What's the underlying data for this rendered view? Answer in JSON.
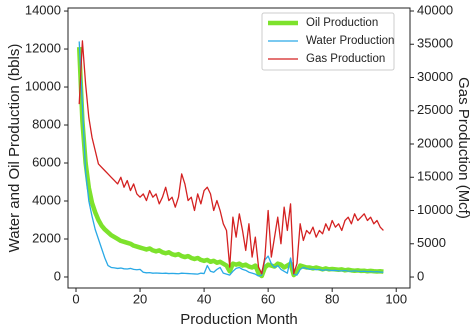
{
  "chart_data": {
    "type": "line",
    "xlabel": "Production Month",
    "ylabel": "Water and Oil Production (bbls)",
    "y2label": "Gas Production (Mcf)",
    "x": [
      1,
      2,
      3,
      4,
      5,
      6,
      7,
      8,
      9,
      10,
      11,
      12,
      13,
      14,
      15,
      16,
      17,
      18,
      19,
      20,
      21,
      22,
      23,
      24,
      25,
      26,
      27,
      28,
      29,
      30,
      31,
      32,
      33,
      34,
      35,
      36,
      37,
      38,
      39,
      40,
      41,
      42,
      43,
      44,
      45,
      46,
      47,
      48,
      49,
      50,
      51,
      52,
      53,
      54,
      55,
      56,
      57,
      58,
      59,
      60,
      61,
      62,
      63,
      64,
      65,
      66,
      67,
      68,
      69,
      70,
      71,
      72,
      73,
      74,
      75,
      76,
      77,
      78,
      79,
      80,
      81,
      82,
      83,
      84,
      85,
      86,
      87,
      88,
      89,
      90,
      91,
      92,
      93,
      94,
      95,
      96
    ],
    "series": [
      {
        "name": "Oil Production",
        "color": "#7de22c",
        "width": 4.5,
        "values": [
          12100,
          8200,
          6000,
          4700,
          3900,
          3400,
          3000,
          2700,
          2500,
          2350,
          2200,
          2100,
          2000,
          1900,
          1850,
          1800,
          1750,
          1650,
          1600,
          1550,
          1500,
          1450,
          1500,
          1400,
          1350,
          1400,
          1300,
          1250,
          1300,
          1200,
          1150,
          1200,
          1100,
          1050,
          1100,
          1000,
          950,
          1000,
          900,
          850,
          900,
          800,
          850,
          750,
          800,
          700,
          600,
          300,
          700,
          650,
          700,
          600,
          650,
          550,
          500,
          600,
          200,
          50,
          500,
          650,
          600,
          550,
          700,
          650,
          500,
          600,
          700,
          100,
          250,
          600,
          550,
          500,
          500,
          450,
          500,
          450,
          400,
          450,
          400,
          420,
          400,
          380,
          400,
          350,
          380,
          350,
          330,
          350,
          320,
          330,
          300,
          320,
          300,
          290,
          300,
          280
        ]
      },
      {
        "name": "Water Production",
        "color": "#2aa9e6",
        "width": 1.3,
        "values": [
          12400,
          9000,
          5500,
          4000,
          3200,
          2500,
          2000,
          1500,
          1000,
          600,
          500,
          480,
          450,
          470,
          430,
          420,
          450,
          400,
          380,
          400,
          250,
          220,
          230,
          200,
          210,
          200,
          190,
          200,
          180,
          190,
          180,
          170,
          200,
          190,
          180,
          170,
          160,
          150,
          200,
          180,
          600,
          300,
          250,
          400,
          500,
          200,
          150,
          100,
          300,
          450,
          500,
          400,
          350,
          250,
          200,
          150,
          50,
          100,
          900,
          1100,
          700,
          500,
          600,
          400,
          300,
          200,
          1000,
          150,
          100,
          400,
          500,
          450,
          400,
          420,
          380,
          400,
          350,
          380,
          360,
          340,
          350,
          330,
          320,
          340,
          310,
          300,
          320,
          300,
          290,
          300,
          280,
          290,
          270,
          280,
          260,
          250
        ]
      },
      {
        "name": "Gas Production",
        "color": "#d42222",
        "width": 1.3,
        "axis": "y2",
        "values": [
          26000,
          35500,
          29000,
          24000,
          21000,
          19000,
          17000,
          16500,
          16000,
          15500,
          15000,
          14500,
          14000,
          15000,
          13500,
          14500,
          13000,
          14000,
          12500,
          12000,
          12500,
          11500,
          13000,
          12000,
          12500,
          11000,
          12000,
          13500,
          11500,
          12000,
          10500,
          12000,
          15500,
          14000,
          11500,
          12000,
          10000,
          12500,
          11000,
          13000,
          13500,
          12500,
          10000,
          11500,
          10000,
          8000,
          7000,
          1500,
          9000,
          6000,
          9500,
          7000,
          4000,
          8000,
          3000,
          6000,
          1500,
          500,
          3000,
          10000,
          3000,
          6000,
          9000,
          5000,
          10500,
          7000,
          11000,
          500,
          2000,
          8000,
          5500,
          7000,
          6500,
          7500,
          6000,
          7000,
          6500,
          8000,
          7000,
          8500,
          7500,
          8000,
          7000,
          8500,
          9000,
          8000,
          9500,
          8500,
          9000,
          9500,
          8500,
          9000,
          8000,
          8500,
          7500,
          7000
        ]
      }
    ],
    "xlim": [
      -2.5,
      104.3
    ],
    "xticks": [
      0,
      20,
      40,
      60,
      80,
      100
    ],
    "ylim": [
      -580,
      14160
    ],
    "yticks": [
      0,
      2000,
      4000,
      6000,
      8000,
      10000,
      12000,
      14000
    ],
    "y2lim": [
      -1650,
      40450
    ],
    "y2ticks": [
      0,
      5000,
      10000,
      15000,
      20000,
      25000,
      30000,
      35000,
      40000
    ],
    "legend": "upper right",
    "grid": false
  }
}
